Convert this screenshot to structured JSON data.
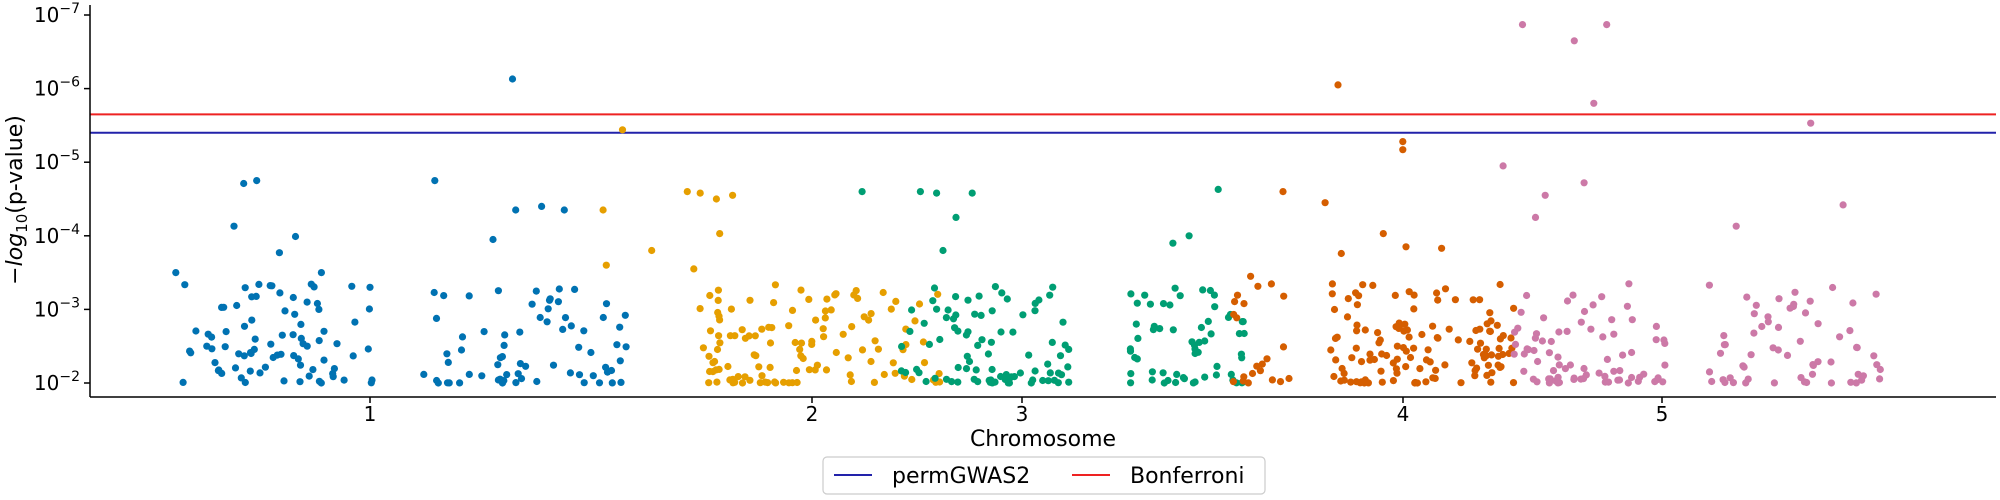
{
  "chart_data": {
    "type": "scatter",
    "title": "",
    "xlabel": "Chromosome",
    "ylabel": "-log10(p-value)",
    "yscale": "log (inverted, p-values)",
    "x_ticks": [
      {
        "label": "1",
        "pos": 1
      },
      {
        "label": "2",
        "pos": 2
      },
      {
        "label": "3",
        "pos": 3
      },
      {
        "label": "4",
        "pos": 4
      },
      {
        "label": "5",
        "pos": 5
      }
    ],
    "y_ticks": [
      {
        "label": "10^{-7}",
        "base": "10",
        "exp": "−7",
        "exp_val": -7
      },
      {
        "label": "10^{-6}",
        "base": "10",
        "exp": "−6",
        "exp_val": -6
      },
      {
        "label": "10^{-5}",
        "base": "10",
        "exp": "−5",
        "exp_val": -5
      },
      {
        "label": "10^{-4}",
        "base": "10",
        "exp": "−4",
        "exp_val": -4
      },
      {
        "label": "10^{-3}",
        "base": "10",
        "exp": "−3",
        "exp_val": -3
      },
      {
        "label": "10^{-2}",
        "base": "10",
        "exp": "−2",
        "exp_val": -2
      }
    ],
    "thresholds": [
      {
        "name": "permGWAS2",
        "exp": -5.4,
        "color": "#2222aa"
      },
      {
        "name": "Bonferroni",
        "exp": -5.65,
        "color": "#ee2222"
      }
    ],
    "legend": {
      "placement": "bottom-center",
      "entries": [
        "permGWAS2",
        "Bonferroni"
      ]
    },
    "chromosome_colors": [
      "#0072b2",
      "#e69f00",
      "#009e73",
      "#d55e00",
      "#cc79a7"
    ],
    "series": [
      {
        "chromosome": 1,
        "color": "#0072b2",
        "highlights": [
          {
            "x": 0.61,
            "exp": -4.71
          },
          {
            "x": 0.65,
            "exp": -4.75
          },
          {
            "x": 0.58,
            "exp": -4.13
          },
          {
            "x": 0.72,
            "exp": -3.77
          },
          {
            "x": 0.77,
            "exp": -3.99
          },
          {
            "x": 0.85,
            "exp": -3.5
          },
          {
            "x": 0.4,
            "exp": -3.5
          },
          {
            "x": 1.44,
            "exp": -6.13
          },
          {
            "x": 1.2,
            "exp": -4.75
          },
          {
            "x": 1.38,
            "exp": -3.95
          },
          {
            "x": 1.45,
            "exp": -4.35
          },
          {
            "x": 1.53,
            "exp": -4.4
          },
          {
            "x": 1.6,
            "exp": -4.35
          },
          {
            "x": 1.0,
            "exp": -3.3
          }
        ],
        "x_range": [
          0.38,
          1.74
        ],
        "seed": 11,
        "n_random": 150
      },
      {
        "chromosome": 2,
        "color": "#e69f00",
        "highlights": [
          {
            "x": 1.78,
            "exp": -5.44
          },
          {
            "x": 1.98,
            "exp": -4.6
          },
          {
            "x": 2.02,
            "exp": -4.58
          },
          {
            "x": 2.07,
            "exp": -4.5
          },
          {
            "x": 2.12,
            "exp": -4.55
          },
          {
            "x": 2.08,
            "exp": -4.03
          },
          {
            "x": 2.0,
            "exp": -3.55
          },
          {
            "x": 1.87,
            "exp": -3.8
          },
          {
            "x": 1.72,
            "exp": -4.35
          },
          {
            "x": 1.73,
            "exp": -3.6
          }
        ],
        "x_range": [
          1.75,
          2.44
        ],
        "seed": 23,
        "n_random": 120
      },
      {
        "chromosome": 3,
        "color": "#009e73",
        "highlights": [
          {
            "x": 2.52,
            "exp": -4.6
          },
          {
            "x": 2.7,
            "exp": -4.6
          },
          {
            "x": 2.75,
            "exp": -4.58
          },
          {
            "x": 2.86,
            "exp": -4.58
          },
          {
            "x": 2.81,
            "exp": -4.25
          },
          {
            "x": 3.62,
            "exp": -4.63
          },
          {
            "x": 3.53,
            "exp": -4.0
          },
          {
            "x": 3.48,
            "exp": -3.9
          },
          {
            "x": 2.77,
            "exp": -3.8
          }
        ],
        "x_range": [
          2.4,
          3.7
        ],
        "seed": 37,
        "n_random": 150
      },
      {
        "chromosome": 4,
        "color": "#d55e00",
        "highlights": [
          {
            "x": 3.99,
            "exp": -6.05
          },
          {
            "x": 4.19,
            "exp": -5.28
          },
          {
            "x": 4.19,
            "exp": -5.17
          },
          {
            "x": 3.82,
            "exp": -4.6
          },
          {
            "x": 3.95,
            "exp": -4.45
          },
          {
            "x": 4.13,
            "exp": -4.03
          },
          {
            "x": 4.2,
            "exp": -3.85
          },
          {
            "x": 4.31,
            "exp": -3.83
          },
          {
            "x": 4.0,
            "exp": -3.76
          },
          {
            "x": 3.72,
            "exp": -3.45
          }
        ],
        "x_range": [
          3.68,
          4.52
        ],
        "seed": 51,
        "n_random": 150
      },
      {
        "chromosome": 5,
        "color": "#cc79a7",
        "highlights": [
          {
            "x": 4.56,
            "exp": -6.87
          },
          {
            "x": 4.72,
            "exp": -6.65
          },
          {
            "x": 4.82,
            "exp": -6.87
          },
          {
            "x": 4.78,
            "exp": -5.8
          },
          {
            "x": 5.45,
            "exp": -5.53
          },
          {
            "x": 4.5,
            "exp": -4.95
          },
          {
            "x": 4.63,
            "exp": -4.55
          },
          {
            "x": 4.75,
            "exp": -4.72
          },
          {
            "x": 5.55,
            "exp": -4.42
          },
          {
            "x": 4.6,
            "exp": -4.25
          },
          {
            "x": 5.22,
            "exp": -4.13
          }
        ],
        "x_range": [
          4.48,
          5.66
        ],
        "seed": 67,
        "n_random": 140
      }
    ]
  }
}
